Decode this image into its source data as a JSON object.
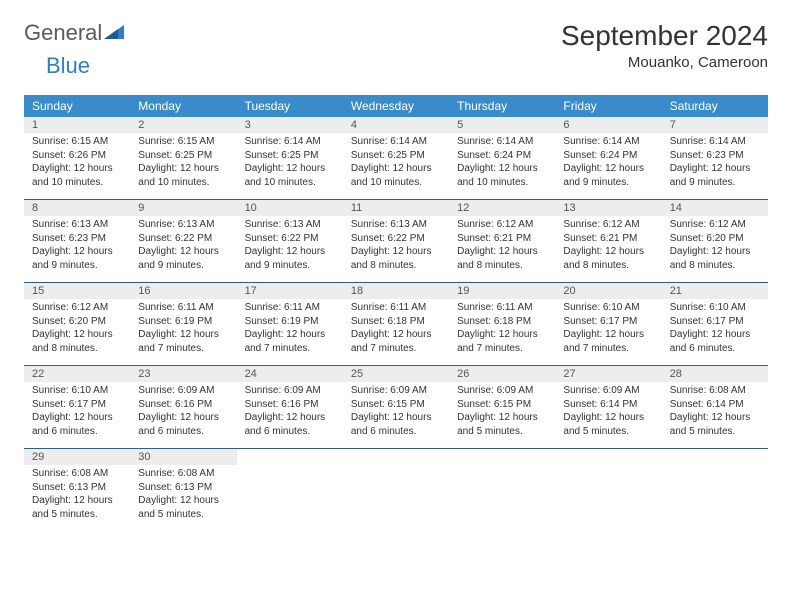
{
  "logo": {
    "text1": "General",
    "text2": "Blue"
  },
  "title": "September 2024",
  "location": "Mouanko, Cameroon",
  "weekdays": [
    "Sunday",
    "Monday",
    "Tuesday",
    "Wednesday",
    "Thursday",
    "Friday",
    "Saturday"
  ],
  "colors": {
    "header_bg": "#3a8bc9",
    "header_fg": "#ffffff",
    "daynum_bg": "#eceded",
    "row_border": "#2e5b8a",
    "text": "#333333",
    "logo_gray": "#5a5a5a",
    "logo_blue": "#2f7fc2"
  },
  "weeks": [
    [
      {
        "n": "1",
        "sr": "Sunrise: 6:15 AM",
        "ss": "Sunset: 6:26 PM",
        "d1": "Daylight: 12 hours",
        "d2": "and 10 minutes."
      },
      {
        "n": "2",
        "sr": "Sunrise: 6:15 AM",
        "ss": "Sunset: 6:25 PM",
        "d1": "Daylight: 12 hours",
        "d2": "and 10 minutes."
      },
      {
        "n": "3",
        "sr": "Sunrise: 6:14 AM",
        "ss": "Sunset: 6:25 PM",
        "d1": "Daylight: 12 hours",
        "d2": "and 10 minutes."
      },
      {
        "n": "4",
        "sr": "Sunrise: 6:14 AM",
        "ss": "Sunset: 6:25 PM",
        "d1": "Daylight: 12 hours",
        "d2": "and 10 minutes."
      },
      {
        "n": "5",
        "sr": "Sunrise: 6:14 AM",
        "ss": "Sunset: 6:24 PM",
        "d1": "Daylight: 12 hours",
        "d2": "and 10 minutes."
      },
      {
        "n": "6",
        "sr": "Sunrise: 6:14 AM",
        "ss": "Sunset: 6:24 PM",
        "d1": "Daylight: 12 hours",
        "d2": "and 9 minutes."
      },
      {
        "n": "7",
        "sr": "Sunrise: 6:14 AM",
        "ss": "Sunset: 6:23 PM",
        "d1": "Daylight: 12 hours",
        "d2": "and 9 minutes."
      }
    ],
    [
      {
        "n": "8",
        "sr": "Sunrise: 6:13 AM",
        "ss": "Sunset: 6:23 PM",
        "d1": "Daylight: 12 hours",
        "d2": "and 9 minutes."
      },
      {
        "n": "9",
        "sr": "Sunrise: 6:13 AM",
        "ss": "Sunset: 6:22 PM",
        "d1": "Daylight: 12 hours",
        "d2": "and 9 minutes."
      },
      {
        "n": "10",
        "sr": "Sunrise: 6:13 AM",
        "ss": "Sunset: 6:22 PM",
        "d1": "Daylight: 12 hours",
        "d2": "and 9 minutes."
      },
      {
        "n": "11",
        "sr": "Sunrise: 6:13 AM",
        "ss": "Sunset: 6:22 PM",
        "d1": "Daylight: 12 hours",
        "d2": "and 8 minutes."
      },
      {
        "n": "12",
        "sr": "Sunrise: 6:12 AM",
        "ss": "Sunset: 6:21 PM",
        "d1": "Daylight: 12 hours",
        "d2": "and 8 minutes."
      },
      {
        "n": "13",
        "sr": "Sunrise: 6:12 AM",
        "ss": "Sunset: 6:21 PM",
        "d1": "Daylight: 12 hours",
        "d2": "and 8 minutes."
      },
      {
        "n": "14",
        "sr": "Sunrise: 6:12 AM",
        "ss": "Sunset: 6:20 PM",
        "d1": "Daylight: 12 hours",
        "d2": "and 8 minutes."
      }
    ],
    [
      {
        "n": "15",
        "sr": "Sunrise: 6:12 AM",
        "ss": "Sunset: 6:20 PM",
        "d1": "Daylight: 12 hours",
        "d2": "and 8 minutes."
      },
      {
        "n": "16",
        "sr": "Sunrise: 6:11 AM",
        "ss": "Sunset: 6:19 PM",
        "d1": "Daylight: 12 hours",
        "d2": "and 7 minutes."
      },
      {
        "n": "17",
        "sr": "Sunrise: 6:11 AM",
        "ss": "Sunset: 6:19 PM",
        "d1": "Daylight: 12 hours",
        "d2": "and 7 minutes."
      },
      {
        "n": "18",
        "sr": "Sunrise: 6:11 AM",
        "ss": "Sunset: 6:18 PM",
        "d1": "Daylight: 12 hours",
        "d2": "and 7 minutes."
      },
      {
        "n": "19",
        "sr": "Sunrise: 6:11 AM",
        "ss": "Sunset: 6:18 PM",
        "d1": "Daylight: 12 hours",
        "d2": "and 7 minutes."
      },
      {
        "n": "20",
        "sr": "Sunrise: 6:10 AM",
        "ss": "Sunset: 6:17 PM",
        "d1": "Daylight: 12 hours",
        "d2": "and 7 minutes."
      },
      {
        "n": "21",
        "sr": "Sunrise: 6:10 AM",
        "ss": "Sunset: 6:17 PM",
        "d1": "Daylight: 12 hours",
        "d2": "and 6 minutes."
      }
    ],
    [
      {
        "n": "22",
        "sr": "Sunrise: 6:10 AM",
        "ss": "Sunset: 6:17 PM",
        "d1": "Daylight: 12 hours",
        "d2": "and 6 minutes."
      },
      {
        "n": "23",
        "sr": "Sunrise: 6:09 AM",
        "ss": "Sunset: 6:16 PM",
        "d1": "Daylight: 12 hours",
        "d2": "and 6 minutes."
      },
      {
        "n": "24",
        "sr": "Sunrise: 6:09 AM",
        "ss": "Sunset: 6:16 PM",
        "d1": "Daylight: 12 hours",
        "d2": "and 6 minutes."
      },
      {
        "n": "25",
        "sr": "Sunrise: 6:09 AM",
        "ss": "Sunset: 6:15 PM",
        "d1": "Daylight: 12 hours",
        "d2": "and 6 minutes."
      },
      {
        "n": "26",
        "sr": "Sunrise: 6:09 AM",
        "ss": "Sunset: 6:15 PM",
        "d1": "Daylight: 12 hours",
        "d2": "and 5 minutes."
      },
      {
        "n": "27",
        "sr": "Sunrise: 6:09 AM",
        "ss": "Sunset: 6:14 PM",
        "d1": "Daylight: 12 hours",
        "d2": "and 5 minutes."
      },
      {
        "n": "28",
        "sr": "Sunrise: 6:08 AM",
        "ss": "Sunset: 6:14 PM",
        "d1": "Daylight: 12 hours",
        "d2": "and 5 minutes."
      }
    ],
    [
      {
        "n": "29",
        "sr": "Sunrise: 6:08 AM",
        "ss": "Sunset: 6:13 PM",
        "d1": "Daylight: 12 hours",
        "d2": "and 5 minutes."
      },
      {
        "n": "30",
        "sr": "Sunrise: 6:08 AM",
        "ss": "Sunset: 6:13 PM",
        "d1": "Daylight: 12 hours",
        "d2": "and 5 minutes."
      },
      null,
      null,
      null,
      null,
      null
    ]
  ]
}
